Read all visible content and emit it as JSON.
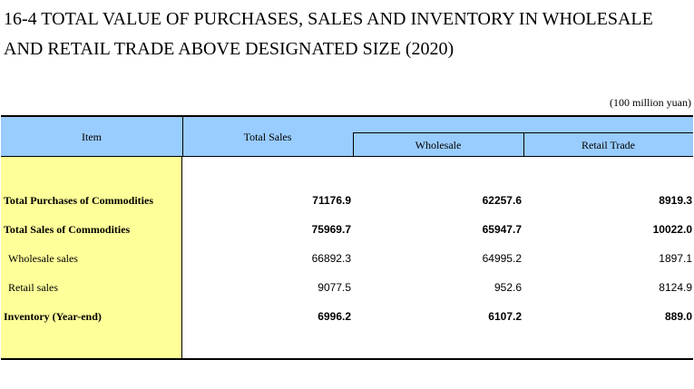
{
  "title_line1": "16-4  TOTAL VALUE OF PURCHASES, SALES AND INVENTORY IN WHOLESALE",
  "title_line2": "AND RETAIL TRADE ABOVE DESIGNATED SIZE (2020)",
  "unit": "(100 million yuan)",
  "header": {
    "item": "Item",
    "total_sales": "Total Sales",
    "wholesale": "Wholesale",
    "retail": "Retail Trade"
  },
  "rows": [
    {
      "label": "Total Purchases of Commodities",
      "total": "71176.9",
      "wholesale": "62257.6",
      "retail": "8919.3"
    },
    {
      "label": "Total Sales of Commodities",
      "total": "75969.7",
      "wholesale": "65947.7",
      "retail": "10022.0"
    },
    {
      "label": "Wholesale sales",
      "total": "66892.3",
      "wholesale": "64995.2",
      "retail": "1897.1"
    },
    {
      "label": "Retail sales",
      "total": "9077.5",
      "wholesale": "952.6",
      "retail": "8124.9"
    },
    {
      "label": "Inventory (Year-end)",
      "total": "6996.2",
      "wholesale": "6107.2",
      "retail": "889.0"
    }
  ],
  "colors": {
    "header_bg": "#99ccff",
    "item_column_bg": "#ffff99"
  }
}
